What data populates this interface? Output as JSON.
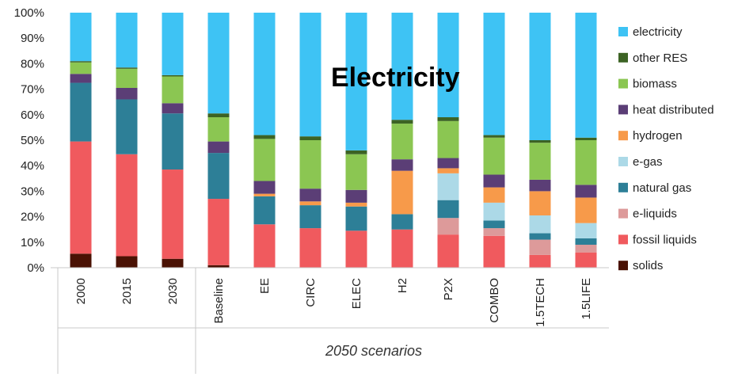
{
  "chart_data": {
    "type": "bar",
    "stacked": true,
    "percent": true,
    "title": "",
    "overlay_label": "Electricity",
    "group_label": "2050 scenarios",
    "ylim": [
      0,
      100
    ],
    "yticks": [
      "0%",
      "10%",
      "20%",
      "30%",
      "40%",
      "50%",
      "60%",
      "70%",
      "80%",
      "90%",
      "100%"
    ],
    "grid": false,
    "legend_position": "right",
    "categories": [
      "2000",
      "2015",
      "2030",
      "Baseline",
      "EE",
      "CIRC",
      "ELEC",
      "H2",
      "P2X",
      "COMBO",
      "1.5TECH",
      "1.5LIFE"
    ],
    "series": [
      {
        "name": "solids",
        "color": "#4a1204",
        "values": [
          5.5,
          4.5,
          3.5,
          1,
          0,
          0,
          0,
          0,
          0,
          0,
          0,
          0
        ]
      },
      {
        "name": "fossil liquids",
        "color": "#f05a5e",
        "values": [
          44,
          40,
          35,
          26,
          17,
          15.5,
          14.5,
          15,
          13,
          12.5,
          5,
          6
        ]
      },
      {
        "name": "e-liquids",
        "color": "#dd9a9a",
        "values": [
          0,
          0,
          0,
          0,
          0,
          0,
          0,
          0,
          6.5,
          3,
          6,
          3
        ]
      },
      {
        "name": "natural gas",
        "color": "#2d7f97",
        "values": [
          23,
          21.5,
          22,
          18,
          11,
          9,
          9.5,
          6,
          7,
          3,
          2.5,
          2.5
        ]
      },
      {
        "name": "e-gas",
        "color": "#acd9e7",
        "values": [
          0,
          0,
          0,
          0,
          0,
          0,
          0,
          0,
          10.5,
          7,
          7,
          6
        ]
      },
      {
        "name": "hydrogen",
        "color": "#f79a4a",
        "values": [
          0,
          0,
          0,
          0,
          1,
          1.5,
          1.5,
          17,
          2,
          6,
          9.5,
          10
        ]
      },
      {
        "name": "heat distributed",
        "color": "#5b3e76",
        "values": [
          3.5,
          4.5,
          4,
          4.5,
          5,
          5,
          5,
          4.5,
          4,
          5,
          4.5,
          5
        ]
      },
      {
        "name": "biomass",
        "color": "#8bc652",
        "values": [
          4.5,
          7.5,
          10.5,
          9.5,
          16.5,
          19,
          14,
          14,
          14.5,
          14.5,
          14.5,
          17.5
        ]
      },
      {
        "name": "other RES",
        "color": "#3c6324",
        "values": [
          0.5,
          0.5,
          0.5,
          1.5,
          1.5,
          1.5,
          1.5,
          1.5,
          1.5,
          1,
          1,
          1
        ]
      },
      {
        "name": "electricity",
        "color": "#3ec3f4",
        "values": [
          19,
          21.5,
          24.5,
          39.5,
          48,
          48.5,
          54,
          42,
          41,
          48,
          50,
          49
        ]
      }
    ]
  }
}
